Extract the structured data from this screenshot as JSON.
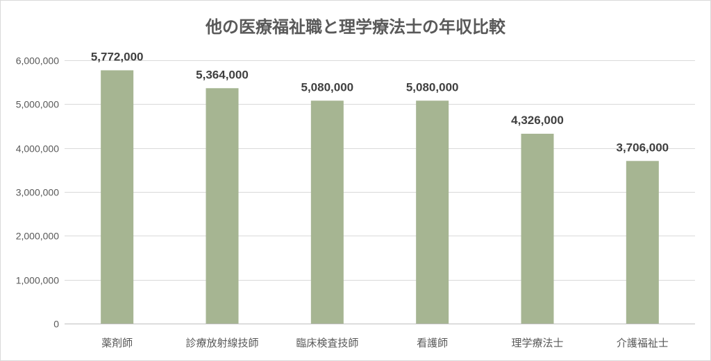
{
  "chart_data": {
    "type": "bar",
    "title": "他の医療福祉職と理学療法士の年収比較",
    "xlabel": "",
    "ylabel": "",
    "categories": [
      "薬剤師",
      "診療放射線技師",
      "臨床検査技師",
      "看護師",
      "理学療法士",
      "介護福祉士"
    ],
    "values": [
      5772000,
      5364000,
      5080000,
      5080000,
      4326000,
      3706000
    ],
    "data_labels": [
      "5,772,000",
      "5,364,000",
      "5,080,000",
      "5,080,000",
      "4,326,000",
      "3,706,000"
    ],
    "ylim": [
      0,
      6000000
    ],
    "y_ticks": [
      0,
      1000000,
      2000000,
      3000000,
      4000000,
      5000000,
      6000000
    ],
    "y_tick_labels": [
      "0",
      "1,000,000",
      "2,000,000",
      "3,000,000",
      "4,000,000",
      "5,000,000",
      "6,000,000"
    ],
    "grid": true,
    "legend": "none",
    "colors": {
      "bar": "#a6b592",
      "grid": "#d9d9d9",
      "text": "#595959",
      "data_label": "#404040"
    }
  }
}
